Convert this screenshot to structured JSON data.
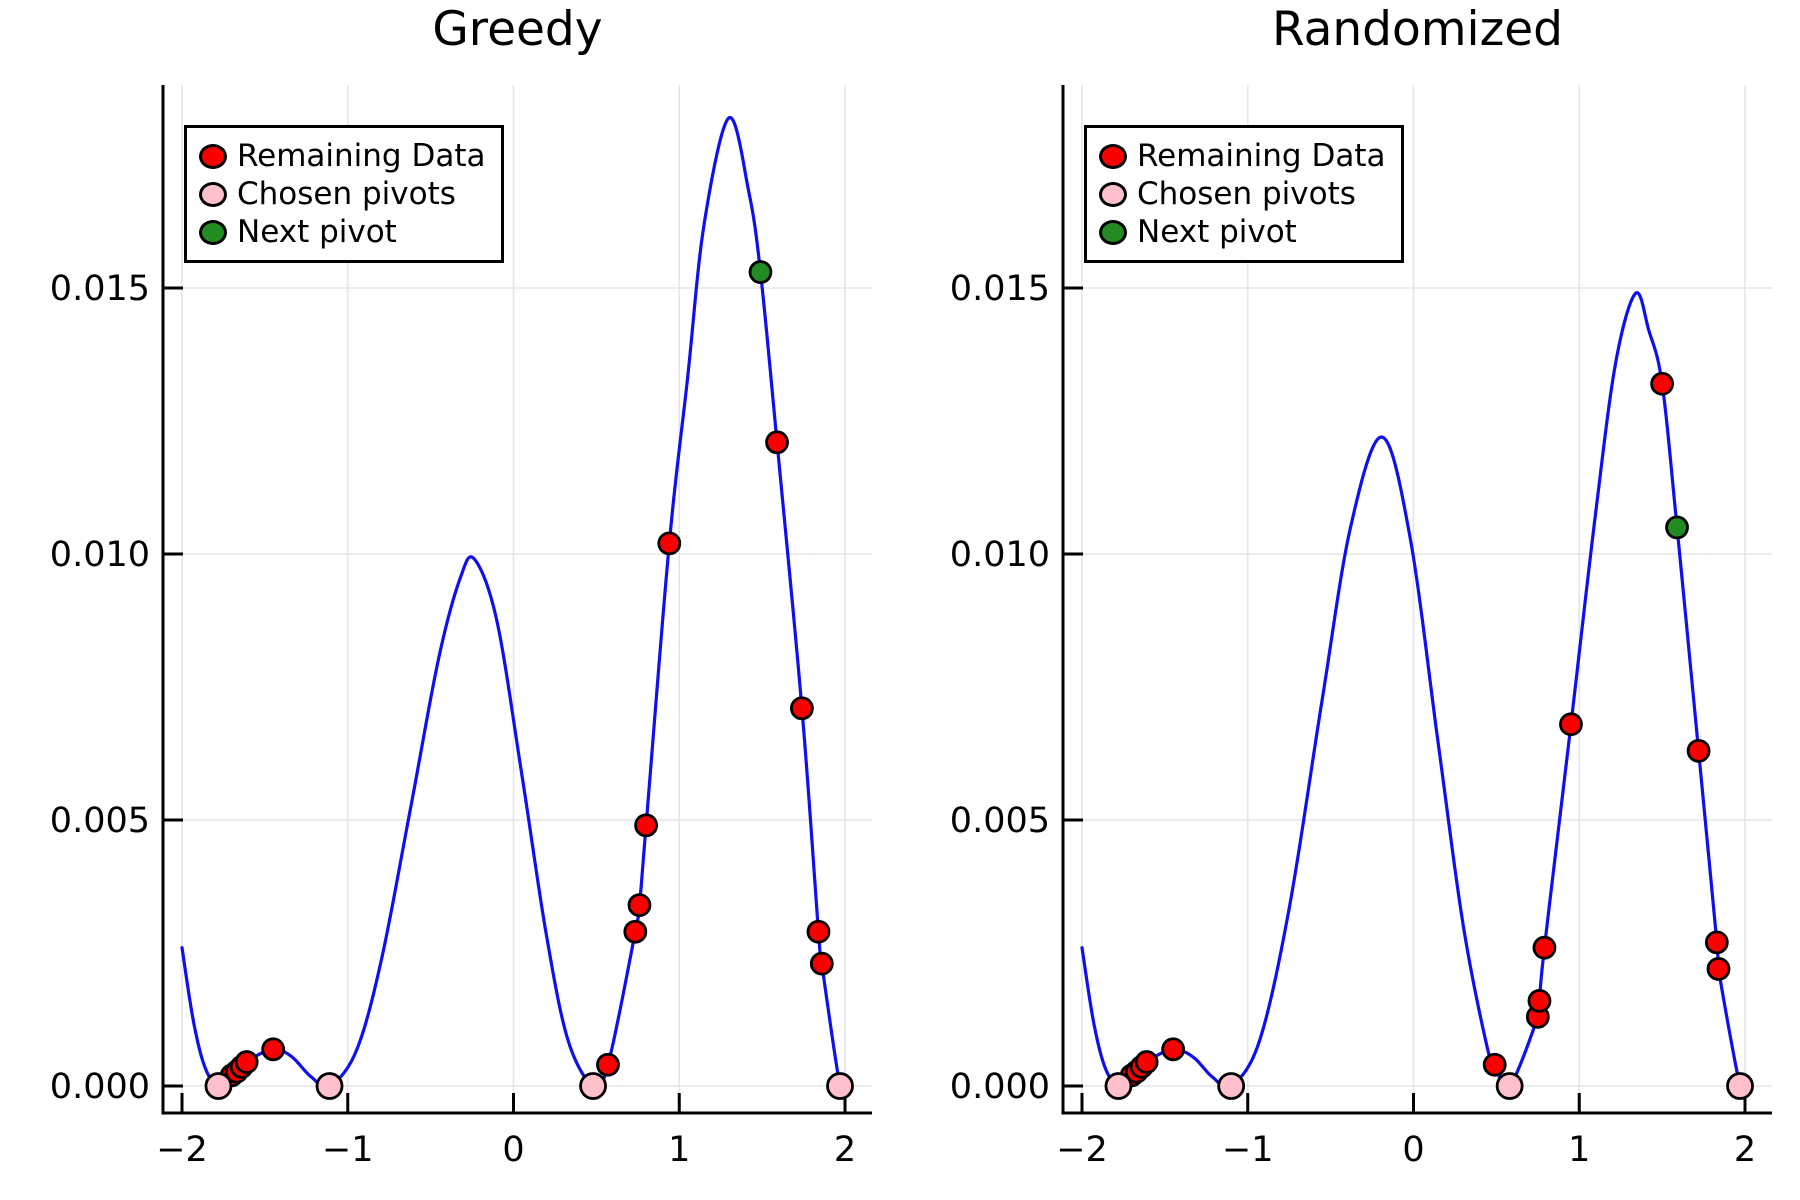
{
  "figure": {
    "background": "#ffffff",
    "colors": {
      "curve": "#0f0ff0",
      "remaining": "#fa0000",
      "chosen_pivot": "#ffc0cb",
      "next_pivot": "#228b22",
      "marker_outline": "#000000",
      "grid": "#e5e5e5",
      "axis": "#000000"
    }
  },
  "chart_data": [
    {
      "type": "line+scatter",
      "title": "Greedy",
      "xlabel": "",
      "ylabel": "",
      "xlim": [
        -2.11,
        2.16
      ],
      "ylim": [
        -0.0005,
        0.0188
      ],
      "grid": true,
      "legend_position": "top-left",
      "xticks": [
        -2,
        -1,
        0,
        1,
        2
      ],
      "xtick_labels": [
        "−2",
        "−1",
        "0",
        "1",
        "2"
      ],
      "yticks": [
        0.0,
        0.005,
        0.01,
        0.015
      ],
      "ytick_labels": [
        "0.000",
        "0.005",
        "0.010",
        "0.015"
      ],
      "legend": {
        "entries": [
          {
            "label": "Remaining Data",
            "color": "#fa0000"
          },
          {
            "label": "Chosen pivots",
            "color": "#ffc0cb"
          },
          {
            "label": "Next pivot",
            "color": "#228b22"
          }
        ]
      },
      "curve": [
        [
          -2.0,
          0.0026
        ],
        [
          -1.93,
          0.0012
        ],
        [
          -1.86,
          0.00034
        ],
        [
          -1.78,
          0
        ],
        [
          -1.7,
          0.0002
        ],
        [
          -1.67,
          0.00027
        ],
        [
          -1.64,
          0.00036
        ],
        [
          -1.61,
          0.00045
        ],
        [
          -1.52,
          0.00062
        ],
        [
          -1.45,
          0.00069
        ],
        [
          -1.42,
          0.0007
        ],
        [
          -1.33,
          0.00053
        ],
        [
          -1.22,
          0.00017
        ],
        [
          -1.11,
          0
        ],
        [
          -0.95,
          0.00065
        ],
        [
          -0.8,
          0.00233
        ],
        [
          -0.62,
          0.00524
        ],
        [
          -0.45,
          0.00806
        ],
        [
          -0.32,
          0.00956
        ],
        [
          -0.235,
          0.0099
        ],
        [
          -0.1,
          0.00874
        ],
        [
          0.05,
          0.00586
        ],
        [
          0.2,
          0.00281
        ],
        [
          0.33,
          0.00085
        ],
        [
          0.48,
          0
        ],
        [
          0.57,
          0.0004
        ],
        [
          0.735,
          0.0029
        ],
        [
          0.76,
          0.0034
        ],
        [
          0.8,
          0.0049
        ],
        [
          0.94,
          0.0102
        ],
        [
          1.05,
          0.0133
        ],
        [
          1.15,
          0.0162
        ],
        [
          1.3,
          0.0182
        ],
        [
          1.42,
          0.0168
        ],
        [
          1.49,
          0.0153
        ],
        [
          1.59,
          0.0121
        ],
        [
          1.74,
          0.0071
        ],
        [
          1.84,
          0.0029
        ],
        [
          1.86,
          0.0023
        ],
        [
          1.97,
          0
        ],
        [
          2.0,
          0.00012
        ]
      ],
      "series": {
        "remaining": [
          [
            -1.7,
            0.0002
          ],
          [
            -1.67,
            0.00027
          ],
          [
            -1.64,
            0.00036
          ],
          [
            -1.61,
            0.00045
          ],
          [
            -1.45,
            0.00069
          ],
          [
            0.57,
            0.0004
          ],
          [
            0.735,
            0.0029
          ],
          [
            0.76,
            0.0034
          ],
          [
            0.8,
            0.0049
          ],
          [
            0.94,
            0.0102
          ],
          [
            1.59,
            0.0121
          ],
          [
            1.74,
            0.0071
          ],
          [
            1.84,
            0.0029
          ],
          [
            1.86,
            0.0023
          ]
        ],
        "chosen_pivots": [
          [
            -1.78,
            0
          ],
          [
            -1.11,
            0
          ],
          [
            0.48,
            0
          ],
          [
            1.97,
            0
          ]
        ],
        "next_pivot": [
          [
            1.49,
            0.0153
          ]
        ]
      }
    },
    {
      "type": "line+scatter",
      "title": "Randomized",
      "xlabel": "",
      "ylabel": "",
      "xlim": [
        -2.11,
        2.16
      ],
      "ylim": [
        -0.0005,
        0.0188
      ],
      "grid": true,
      "legend_position": "top-left",
      "xticks": [
        -2,
        -1,
        0,
        1,
        2
      ],
      "xtick_labels": [
        "−2",
        "−1",
        "0",
        "1",
        "2"
      ],
      "yticks": [
        0.0,
        0.005,
        0.01,
        0.015
      ],
      "ytick_labels": [
        "0.000",
        "0.005",
        "0.010",
        "0.015"
      ],
      "legend": {
        "entries": [
          {
            "label": "Remaining Data",
            "color": "#fa0000"
          },
          {
            "label": "Chosen pivots",
            "color": "#ffc0cb"
          },
          {
            "label": "Next pivot",
            "color": "#228b22"
          }
        ]
      },
      "curve": [
        [
          -2.0,
          0.0026
        ],
        [
          -1.93,
          0.0012
        ],
        [
          -1.86,
          0.00034
        ],
        [
          -1.78,
          0
        ],
        [
          -1.7,
          0.0002
        ],
        [
          -1.67,
          0.00027
        ],
        [
          -1.64,
          0.00036
        ],
        [
          -1.61,
          0.00045
        ],
        [
          -1.52,
          0.00062
        ],
        [
          -1.45,
          0.00069
        ],
        [
          -1.42,
          0.0007
        ],
        [
          -1.32,
          0.00052
        ],
        [
          -1.21,
          0.00016
        ],
        [
          -1.1,
          0
        ],
        [
          -0.93,
          0.00084
        ],
        [
          -0.75,
          0.00334
        ],
        [
          -0.55,
          0.00728
        ],
        [
          -0.38,
          0.0105
        ],
        [
          -0.19,
          0.0122
        ],
        [
          -0.02,
          0.0103
        ],
        [
          0.15,
          0.00642
        ],
        [
          0.3,
          0.00302
        ],
        [
          0.44,
          0.00079
        ],
        [
          0.49,
          0.0004
        ],
        [
          0.58,
          0
        ],
        [
          0.75,
          0.0013
        ],
        [
          0.76,
          0.0016
        ],
        [
          0.79,
          0.0026
        ],
        [
          0.95,
          0.0068
        ],
        [
          1.1,
          0.0108
        ],
        [
          1.22,
          0.0136
        ],
        [
          1.34,
          0.0149
        ],
        [
          1.42,
          0.0142
        ],
        [
          1.5,
          0.0132
        ],
        [
          1.59,
          0.0105
        ],
        [
          1.72,
          0.0063
        ],
        [
          1.83,
          0.0027
        ],
        [
          1.84,
          0.0022
        ],
        [
          1.97,
          0
        ],
        [
          2.0,
          0.00012
        ]
      ],
      "series": {
        "remaining": [
          [
            -1.7,
            0.0002
          ],
          [
            -1.67,
            0.00027
          ],
          [
            -1.64,
            0.00036
          ],
          [
            -1.61,
            0.00045
          ],
          [
            -1.45,
            0.00069
          ],
          [
            0.49,
            0.0004
          ],
          [
            0.75,
            0.0013
          ],
          [
            0.76,
            0.0016
          ],
          [
            0.79,
            0.0026
          ],
          [
            0.95,
            0.0068
          ],
          [
            1.5,
            0.0132
          ],
          [
            1.72,
            0.0063
          ],
          [
            1.83,
            0.0027
          ],
          [
            1.84,
            0.0022
          ]
        ],
        "chosen_pivots": [
          [
            -1.78,
            0
          ],
          [
            -1.1,
            0
          ],
          [
            0.58,
            0
          ],
          [
            1.97,
            0
          ]
        ],
        "next_pivot": [
          [
            1.59,
            0.0105
          ]
        ]
      }
    }
  ]
}
